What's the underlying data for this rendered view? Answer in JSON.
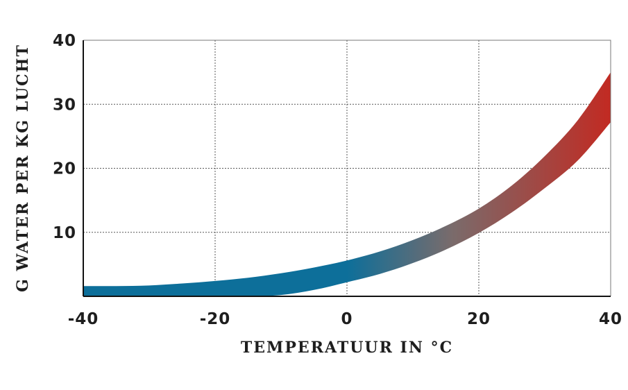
{
  "chart_data": {
    "type": "area",
    "xlabel": "TEMPERATUUR IN °C",
    "ylabel": "G WATER PER KG LUCHT",
    "xlim": [
      -40,
      40
    ],
    "ylim": [
      0,
      40
    ],
    "x_ticks": [
      "-40",
      "-20",
      "0",
      "20",
      "40"
    ],
    "y_ticks": [
      "10",
      "20",
      "30",
      "40"
    ],
    "grid": true,
    "gradient_colors": [
      "#0d6f9a",
      "#0d6f9a",
      "#7a6b6b",
      "#c22a22"
    ],
    "series": [
      {
        "x": [
          -40,
          -35,
          -30,
          -25,
          -20,
          -15,
          -10,
          -5,
          0,
          5,
          10,
          15,
          20,
          25,
          30,
          35,
          40
        ],
        "upper": [
          1.6,
          1.6,
          1.7,
          2.0,
          2.4,
          2.9,
          3.6,
          4.5,
          5.6,
          7.0,
          8.8,
          11.0,
          13.7,
          17.3,
          21.9,
          27.5,
          35.0
        ],
        "lower": [
          0,
          0,
          0,
          0,
          0,
          0,
          0.2,
          1.0,
          2.2,
          3.5,
          5.2,
          7.3,
          9.9,
          13.1,
          16.9,
          21.2,
          27.2
        ]
      }
    ]
  }
}
